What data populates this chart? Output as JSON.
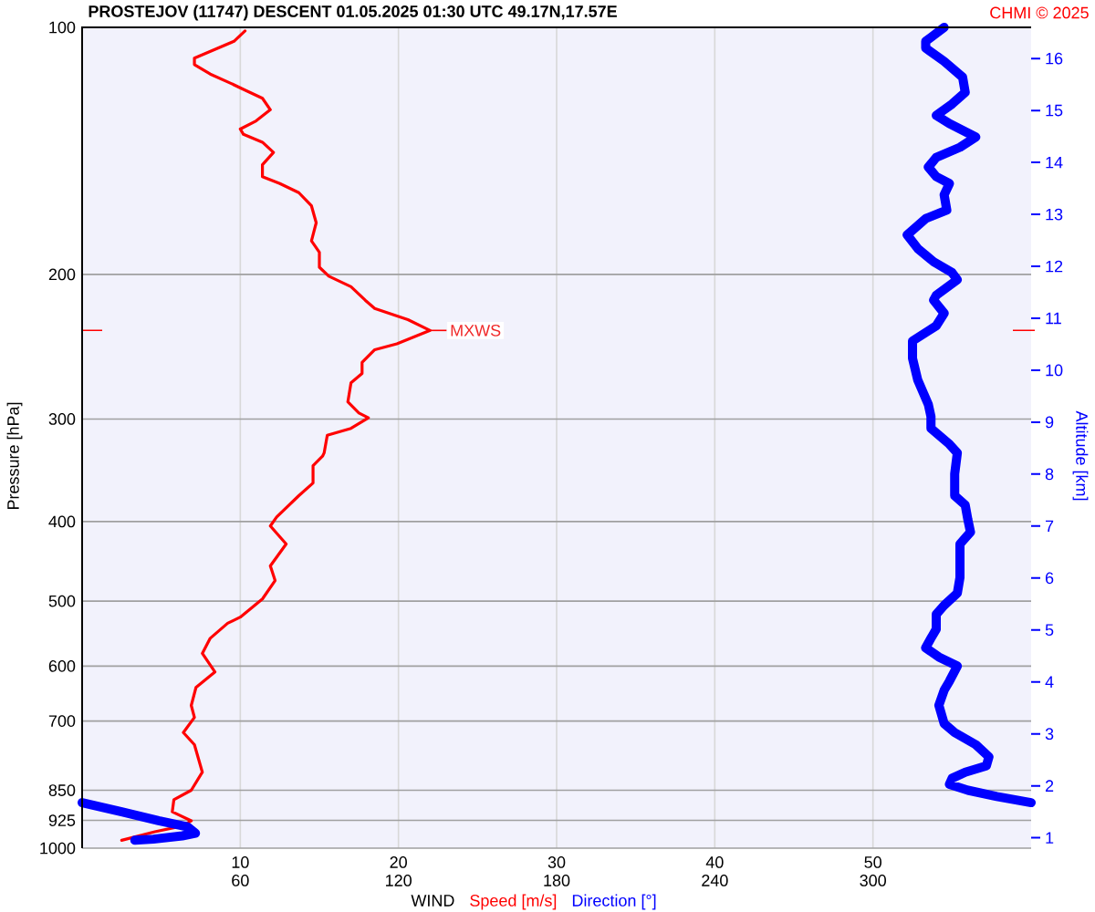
{
  "chart_data": {
    "type": "line",
    "title": "PROSTEJOV (11747)   DESCENT   01.05.2025 01:30 UTC  49.17N,17.57E",
    "xlabel": "WIND",
    "ylabel": "Pressure [hPa]",
    "y2label": "Altitude [km]",
    "annotations": [
      "CHMI © 2025",
      {
        "text": "MXWS",
        "x": 22.0,
        "y": 234
      }
    ],
    "series": [
      {
        "name": "Speed [m/s]",
        "color": "#ff0000",
        "values": [
          10.3,
          9.6,
          7.1,
          7.1,
          8.1,
          9.4,
          10.2,
          11.4,
          11.9,
          11.0,
          10.0,
          10.2,
          11.4,
          12.1,
          11.4,
          11.4,
          12.5,
          13.7,
          14.5,
          14.8,
          14.5,
          15.0,
          15.0,
          15.6,
          17.0,
          17.9,
          18.5,
          20.6,
          22.0,
          19.9,
          18.5,
          17.7,
          17.7,
          17.0,
          16.8,
          17.5,
          18.1,
          17.0,
          15.5,
          15.3,
          15.2,
          14.6,
          14.6,
          13.7,
          12.3,
          11.9,
          12.9,
          11.9,
          12.2,
          11.4,
          10.0,
          9.2,
          8.1,
          7.6,
          8.4,
          7.2,
          6.9,
          7.1,
          6.4,
          7.1,
          7.6,
          6.9,
          5.8,
          5.7,
          6.9,
          6.4,
          4.6,
          2.5
        ],
        "x": [
          101,
          104,
          109,
          111,
          114,
          117,
          119,
          122,
          126,
          130,
          133,
          135,
          138,
          142,
          147,
          152,
          155,
          159,
          165,
          173,
          182,
          188,
          196,
          201,
          207,
          215,
          220,
          227,
          234,
          243,
          247,
          256,
          264,
          271,
          286,
          295,
          299,
          308,
          314,
          330,
          333,
          342,
          359,
          372,
          395,
          405,
          426,
          453,
          472,
          497,
          523,
          532,
          555,
          579,
          610,
          637,
          670,
          693,
          723,
          748,
          808,
          850,
          873,
          903,
          926,
          939,
          955,
          978
        ]
      },
      {
        "name": "Direction [°]",
        "color": "#0000ff",
        "axis": "x2",
        "values": [
          327,
          320,
          320,
          327,
          334,
          335,
          330,
          324,
          329,
          339,
          333,
          324,
          321,
          324,
          329,
          327,
          328,
          320,
          313,
          317,
          323,
          330,
          332,
          324,
          323,
          327,
          324,
          315,
          315,
          317,
          321,
          322,
          322,
          329,
          332,
          331,
          331,
          335,
          336,
          337,
          333,
          333,
          332,
          327,
          324,
          324,
          322,
          320,
          325,
          332,
          329,
          327,
          325,
          327,
          331,
          339,
          344,
          343,
          335,
          330,
          329,
          336,
          347,
          360,
          null,
          0,
          15,
          29,
          40,
          43,
          38,
          27,
          20
        ],
        "x": [
          100,
          104,
          106,
          110,
          115,
          120,
          124,
          128,
          131,
          136,
          140,
          144,
          148,
          152,
          155,
          160,
          167,
          171,
          179,
          186,
          193,
          199,
          203,
          212,
          215,
          223,
          231,
          241,
          253,
          269,
          288,
          298,
          308,
          322,
          330,
          350,
          372,
          382,
          398,
          412,
          426,
          468,
          489,
          506,
          519,
          541,
          555,
          570,
          585,
          600,
          626,
          642,
          670,
          705,
          723,
          748,
          774,
          794,
          808,
          822,
          836,
          850,
          865,
          880,
          null,
          880,
          903,
          926,
          942,
          959,
          966,
          975,
          978
        ]
      }
    ],
    "xlim": [
      0,
      60
    ],
    "xticks": [
      10,
      20,
      30,
      40,
      50
    ],
    "x2lim": [
      0,
      360
    ],
    "x2ticks": [
      60,
      120,
      180,
      240,
      300
    ],
    "ylim": [
      1000,
      100
    ],
    "yticks": [
      100,
      200,
      300,
      400,
      500,
      600,
      700,
      850,
      925,
      1000
    ],
    "y2lim": [
      0.8,
      16.6
    ],
    "y2ticks": [
      1,
      2,
      3,
      4,
      5,
      6,
      7,
      8,
      9,
      10,
      11,
      12,
      13,
      14,
      15,
      16
    ],
    "orientation": "horizontal",
    "log": "y",
    "grid": true
  }
}
